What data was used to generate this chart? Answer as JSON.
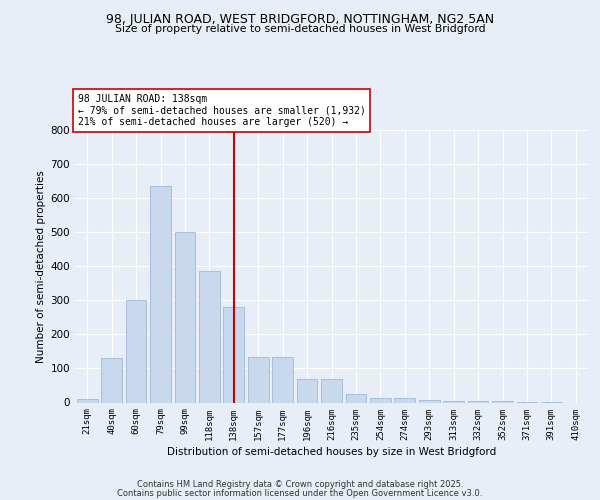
{
  "title1": "98, JULIAN ROAD, WEST BRIDGFORD, NOTTINGHAM, NG2 5AN",
  "title2": "Size of property relative to semi-detached houses in West Bridgford",
  "xlabel": "Distribution of semi-detached houses by size in West Bridgford",
  "ylabel": "Number of semi-detached properties",
  "categories": [
    "21sqm",
    "40sqm",
    "60sqm",
    "79sqm",
    "99sqm",
    "118sqm",
    "138sqm",
    "157sqm",
    "177sqm",
    "196sqm",
    "216sqm",
    "235sqm",
    "254sqm",
    "274sqm",
    "293sqm",
    "313sqm",
    "332sqm",
    "352sqm",
    "371sqm",
    "391sqm",
    "410sqm"
  ],
  "values": [
    10,
    130,
    300,
    635,
    500,
    385,
    280,
    133,
    133,
    68,
    68,
    25,
    13,
    13,
    7,
    5,
    5,
    3,
    2,
    1,
    0
  ],
  "bar_color": "#c9d9ed",
  "bar_edge_color": "#a0b8d8",
  "vline_x_idx": 6,
  "vline_color": "#cc0000",
  "annotation_title": "98 JULIAN ROAD: 138sqm",
  "annotation_line1": "← 79% of semi-detached houses are smaller (1,932)",
  "annotation_line2": "21% of semi-detached houses are larger (520) →",
  "annotation_box_color": "#ffffff",
  "annotation_box_edge": "#cc0000",
  "ylim": [
    0,
    800
  ],
  "yticks": [
    0,
    100,
    200,
    300,
    400,
    500,
    600,
    700,
    800
  ],
  "background_color": "#e8eef7",
  "plot_bg_color": "#e8eef7",
  "footer1": "Contains HM Land Registry data © Crown copyright and database right 2025.",
  "footer2": "Contains public sector information licensed under the Open Government Licence v3.0."
}
